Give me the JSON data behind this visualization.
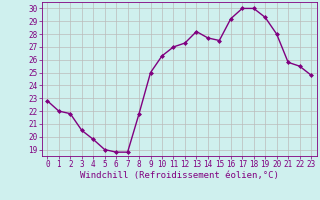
{
  "x": [
    0,
    1,
    2,
    3,
    4,
    5,
    6,
    7,
    8,
    9,
    10,
    11,
    12,
    13,
    14,
    15,
    16,
    17,
    18,
    19,
    20,
    21,
    22,
    23
  ],
  "y": [
    22.8,
    22.0,
    21.8,
    20.5,
    19.8,
    19.0,
    18.8,
    18.8,
    21.8,
    25.0,
    26.3,
    27.0,
    27.3,
    28.2,
    27.7,
    27.5,
    29.2,
    30.0,
    30.0,
    29.3,
    28.0,
    25.8,
    25.5,
    24.8
  ],
  "line_color": "#800080",
  "marker": "D",
  "marker_size": 2,
  "linewidth": 1.0,
  "xlabel": "Windchill (Refroidissement éolien,°C)",
  "xlim": [
    -0.5,
    23.5
  ],
  "ylim": [
    18.5,
    30.5
  ],
  "yticks": [
    19,
    20,
    21,
    22,
    23,
    24,
    25,
    26,
    27,
    28,
    29,
    30
  ],
  "xticks": [
    0,
    1,
    2,
    3,
    4,
    5,
    6,
    7,
    8,
    9,
    10,
    11,
    12,
    13,
    14,
    15,
    16,
    17,
    18,
    19,
    20,
    21,
    22,
    23
  ],
  "bg_color": "#cff0ee",
  "grid_color": "#bbbbbb",
  "tick_label_fontsize": 5.5,
  "xlabel_fontsize": 6.5
}
